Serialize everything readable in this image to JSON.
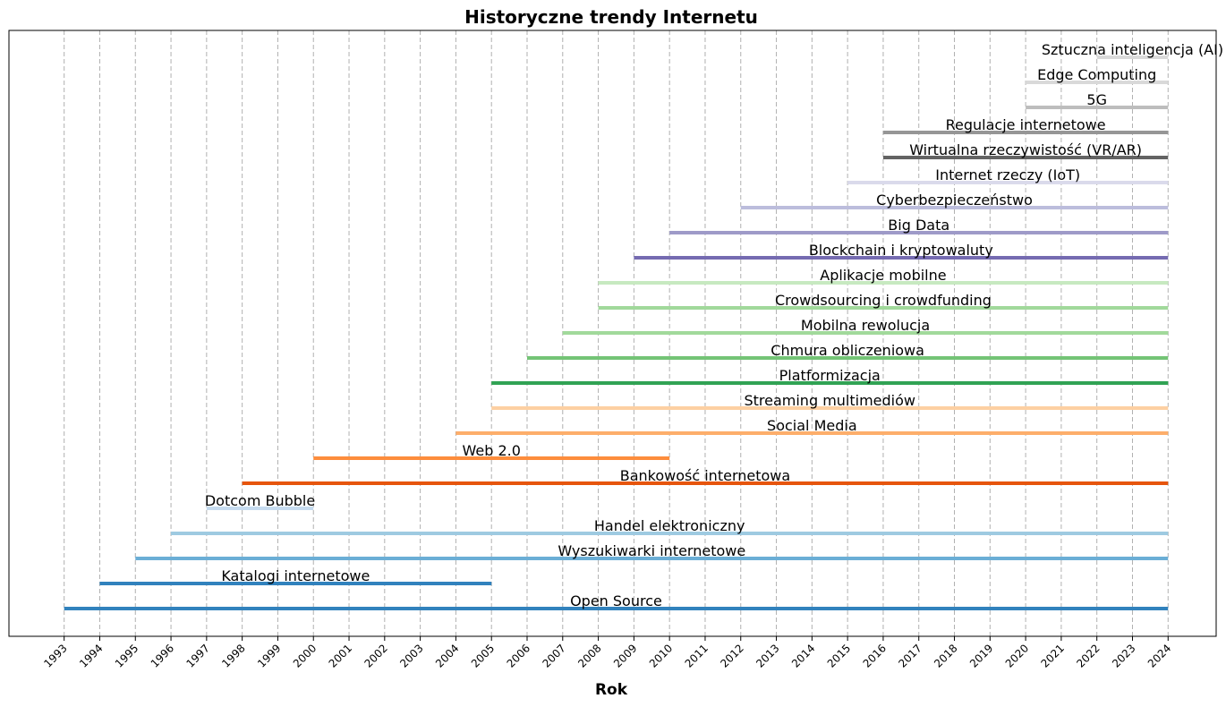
{
  "chart_data": {
    "type": "timeline",
    "title": "Historyczne trendy Internetu",
    "xlabel": "Rok",
    "ylabel": "",
    "xlim": [
      1991.45,
      2025.35
    ],
    "grid": "x-dashed",
    "x_ticks": [
      1993,
      1994,
      1995,
      1996,
      1997,
      1998,
      1999,
      2000,
      2001,
      2002,
      2003,
      2004,
      2005,
      2006,
      2007,
      2008,
      2009,
      2010,
      2011,
      2012,
      2013,
      2014,
      2015,
      2016,
      2017,
      2018,
      2019,
      2020,
      2021,
      2022,
      2023,
      2024
    ],
    "series": [
      {
        "name": "Open Source",
        "start": 1993,
        "end": 2024,
        "color": "#3182bd"
      },
      {
        "name": "Katalogi internetowe",
        "start": 1994,
        "end": 2005,
        "color": "#3182bd"
      },
      {
        "name": "Wyszukiwarki internetowe",
        "start": 1995,
        "end": 2024,
        "color": "#6baed6"
      },
      {
        "name": "Handel elektroniczny",
        "start": 1996,
        "end": 2024,
        "color": "#9ecae1"
      },
      {
        "name": "Dotcom Bubble",
        "start": 1997,
        "end": 2000,
        "color": "#c6dbef"
      },
      {
        "name": "Bankowość internetowa",
        "start": 1998,
        "end": 2024,
        "color": "#e6550d"
      },
      {
        "name": "Web 2.0",
        "start": 2000,
        "end": 2010,
        "color": "#fd8d3c"
      },
      {
        "name": "Social Media",
        "start": 2004,
        "end": 2024,
        "color": "#fdae6b"
      },
      {
        "name": "Streaming multimediów",
        "start": 2005,
        "end": 2024,
        "color": "#fdd0a2"
      },
      {
        "name": "Platformizacja",
        "start": 2005,
        "end": 2024,
        "color": "#31a354"
      },
      {
        "name": "Chmura obliczeniowa",
        "start": 2006,
        "end": 2024,
        "color": "#74c476"
      },
      {
        "name": "Mobilna rewolucja",
        "start": 2007,
        "end": 2024,
        "color": "#a1d99b"
      },
      {
        "name": "Crowdsourcing i crowdfunding",
        "start": 2008,
        "end": 2024,
        "color": "#a1d99b"
      },
      {
        "name": "Aplikacje mobilne",
        "start": 2008,
        "end": 2024,
        "color": "#c7e9c0"
      },
      {
        "name": "Blockchain i kryptowaluty",
        "start": 2009,
        "end": 2024,
        "color": "#756bb1"
      },
      {
        "name": "Big Data",
        "start": 2010,
        "end": 2024,
        "color": "#9e9ac8"
      },
      {
        "name": "Cyberbezpieczeństwo",
        "start": 2012,
        "end": 2024,
        "color": "#bcbddc"
      },
      {
        "name": "Internet rzeczy (IoT)",
        "start": 2015,
        "end": 2024,
        "color": "#dadaeb"
      },
      {
        "name": "Wirtualna rzeczywistość (VR/AR)",
        "start": 2016,
        "end": 2024,
        "color": "#636363"
      },
      {
        "name": "Regulacje internetowe",
        "start": 2016,
        "end": 2024,
        "color": "#969696"
      },
      {
        "name": "5G",
        "start": 2020,
        "end": 2024,
        "color": "#bdbdbd"
      },
      {
        "name": "Edge Computing",
        "start": 2020,
        "end": 2024,
        "color": "#d9d9d9"
      },
      {
        "name": "Sztuczna inteligencja (AI)",
        "start": 2022,
        "end": 2024,
        "color": "#d9d9d9"
      }
    ]
  }
}
